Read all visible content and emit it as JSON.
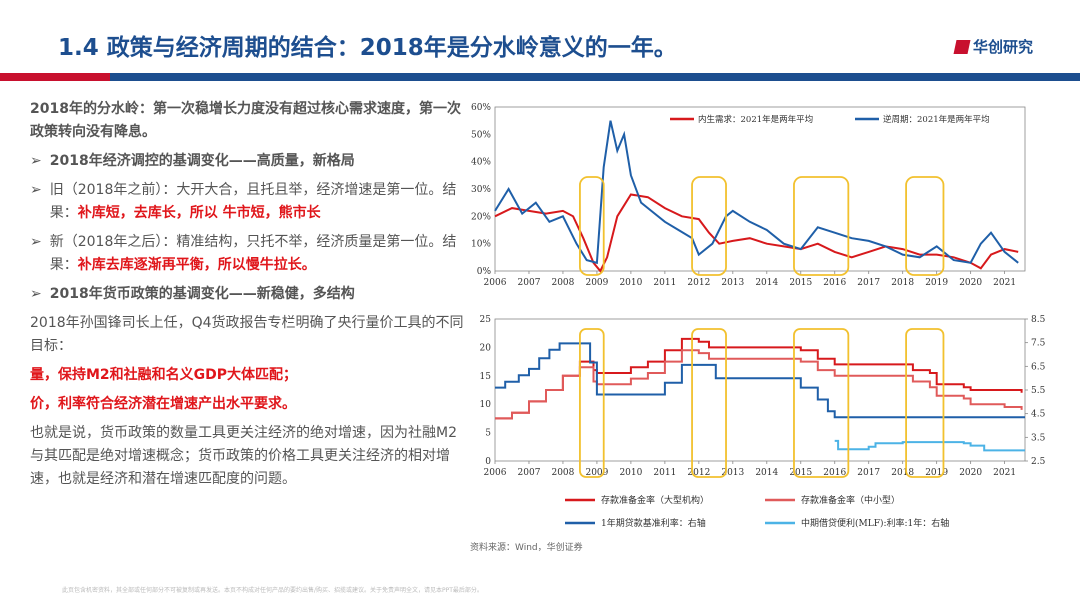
{
  "title": "1.4 政策与经济周期的结合：2018年是分水岭意义的一年。",
  "logo": "华创研究",
  "left": {
    "p1": "2018年的分水岭：第一次稳增长力度没有超过核心需求速度，第一次政策转向没有降息。",
    "b1": "2018年经济调控的基调变化——高质量，新格局",
    "b2_pre": "旧（2018年之前）：大开大合，且托且举，经济增速是第一位。结果：",
    "b2_red": "补库短，去库长，所以 牛市短，熊市长",
    "b3_pre": "新（2018年之后）：精准结构，只托不举，经济质量是第一位。结果：",
    "b3_red": "补库去库逐渐再平衡，所以慢牛拉长。",
    "b4": "2018年货币政策的基调变化——新稳健，多结构",
    "p2": "2018年孙国锋司长上任，Q4货政报告专栏明确了央行量价工具的不同目标：",
    "r1": "量，保持M2和社融和名义GDP大体匹配；",
    "r2": "价，利率符合经济潜在增速产出水平要求。",
    "p3": "也就是说，货币政策的数量工具更关注经济的绝对增速，因为社融M2与其匹配是绝对增速概念；货币政策的价格工具更关注经济的相对增速，也就是经济和潜在增速匹配度的问题。"
  },
  "source": "资料来源：Wind，华创证券",
  "footnote": "此页包含机密资料，其全部或任何部分不可被复制或再发送。本页不构成对任何产品的要约出售/购买、招揽或建议。关于免责声明全文，请见本PPT最后部分。",
  "colors": {
    "red": "#d7191c",
    "blue": "#1f5fa8",
    "lightred": "#e05a5a",
    "lightblue": "#4cb3e6",
    "yellow": "#f2c12e"
  },
  "chart_data": [
    {
      "type": "line",
      "title": "",
      "xlim": [
        2006,
        2021.6
      ],
      "ylim": [
        0,
        60
      ],
      "x_ticks": [
        "2006",
        "2007",
        "2008",
        "2009",
        "2010",
        "2011",
        "2012",
        "2013",
        "2014",
        "2015",
        "2016",
        "2017",
        "2018",
        "2019",
        "2020",
        "2021"
      ],
      "y_ticks": [
        "0%",
        "10%",
        "20%",
        "30%",
        "40%",
        "50%",
        "60%"
      ],
      "series": [
        {
          "name": "内生需求：2021年是两年平均",
          "color": "#d7191c",
          "x": [
            2006,
            2006.5,
            2007,
            2007.5,
            2008,
            2008.3,
            2008.6,
            2008.9,
            2009.1,
            2009.3,
            2009.6,
            2010,
            2010.5,
            2011,
            2011.5,
            2012,
            2012.3,
            2012.6,
            2013,
            2013.5,
            2014,
            2014.5,
            2015,
            2015.5,
            2016,
            2016.5,
            2017,
            2017.5,
            2018,
            2018.5,
            2019,
            2019.5,
            2020,
            2020.3,
            2020.6,
            2021,
            2021.4
          ],
          "values": [
            20,
            23,
            22,
            21,
            22,
            20,
            12,
            3,
            0,
            5,
            20,
            28,
            27,
            23,
            20,
            19,
            14,
            10,
            11,
            12,
            10,
            9,
            8,
            10,
            7,
            5,
            7,
            9,
            8,
            6,
            6,
            5,
            3,
            1,
            6,
            8,
            7
          ]
        },
        {
          "name": "逆周期：2021年是两年平均",
          "color": "#1f5fa8",
          "x": [
            2006,
            2006.4,
            2006.8,
            2007.2,
            2007.6,
            2008,
            2008.4,
            2008.7,
            2009,
            2009.2,
            2009.4,
            2009.6,
            2009.8,
            2010,
            2010.3,
            2010.6,
            2011,
            2011.4,
            2011.8,
            2012,
            2012.4,
            2012.8,
            2013,
            2013.5,
            2014,
            2014.5,
            2015,
            2015.5,
            2016,
            2016.5,
            2017,
            2017.5,
            2018,
            2018.5,
            2019,
            2019.5,
            2020,
            2020.3,
            2020.6,
            2021,
            2021.4
          ],
          "values": [
            22,
            30,
            21,
            25,
            18,
            20,
            10,
            4,
            3,
            38,
            55,
            44,
            50,
            35,
            25,
            22,
            18,
            15,
            12,
            6,
            10,
            20,
            22,
            18,
            15,
            10,
            8,
            16,
            14,
            12,
            11,
            9,
            6,
            5,
            9,
            4,
            3,
            10,
            14,
            7,
            3
          ]
        }
      ]
    },
    {
      "type": "line",
      "title": "",
      "xlim": [
        2006,
        2021.6
      ],
      "ylim": [
        0,
        25
      ],
      "y2lim": [
        2.5,
        8.5
      ],
      "x_ticks": [
        "2006",
        "2007",
        "2008",
        "2009",
        "2010",
        "2011",
        "2012",
        "2013",
        "2014",
        "2015",
        "2016",
        "2017",
        "2018",
        "2019",
        "2020",
        "2021"
      ],
      "y_ticks": [
        "0",
        "5",
        "10",
        "15",
        "20",
        "25"
      ],
      "y2_ticks": [
        "2.5",
        "3.5",
        "4.5",
        "5.5",
        "6.5",
        "7.5",
        "8.5"
      ],
      "series": [
        {
          "name": "存款准备金率（大型机构）",
          "color": "#d7191c",
          "axis": "left",
          "x": [
            2006,
            2006.5,
            2007,
            2007.5,
            2008,
            2008.5,
            2008.9,
            2009,
            2010,
            2010.5,
            2011,
            2011.5,
            2012,
            2012.3,
            2014,
            2015,
            2015.5,
            2016,
            2018,
            2018.3,
            2018.8,
            2019,
            2019.8,
            2020,
            2021,
            2021.5
          ],
          "values": [
            7.5,
            8.5,
            10.5,
            12.5,
            15,
            17.5,
            16,
            15.5,
            16.5,
            17.5,
            19.5,
            21.5,
            21,
            20,
            20,
            19.5,
            18,
            17,
            17,
            16,
            15.5,
            13.5,
            13,
            12.5,
            12.5,
            12
          ]
        },
        {
          "name": "存款准备金率（中小型）",
          "color": "#e05a5a",
          "axis": "left",
          "x": [
            2006,
            2006.5,
            2007,
            2007.5,
            2008,
            2008.5,
            2008.9,
            2009,
            2010,
            2010.5,
            2011,
            2011.5,
            2012,
            2012.3,
            2014,
            2015,
            2015.5,
            2016,
            2018,
            2018.3,
            2018.8,
            2019,
            2019.8,
            2020,
            2021,
            2021.5
          ],
          "values": [
            7.5,
            8.5,
            10.5,
            12.5,
            15,
            16.5,
            14,
            13.5,
            14.5,
            15.5,
            17.5,
            19.5,
            19,
            18,
            18,
            17.5,
            16,
            15,
            15,
            14,
            13,
            11.5,
            11,
            10,
            9.5,
            9
          ]
        },
        {
          "name": "1年期贷款基准利率：右轴",
          "color": "#1f5fa8",
          "axis": "right",
          "x": [
            2006,
            2006.3,
            2006.7,
            2007,
            2007.3,
            2007.6,
            2007.9,
            2008.7,
            2008.8,
            2009,
            2010.8,
            2011,
            2011.5,
            2012.3,
            2012.5,
            2014.8,
            2015,
            2015.5,
            2015.8,
            2016,
            2021.6
          ],
          "values": [
            5.6,
            5.85,
            6.12,
            6.39,
            6.84,
            7.2,
            7.47,
            7.47,
            6.66,
            5.31,
            5.31,
            5.81,
            6.56,
            6.56,
            6.0,
            6.0,
            5.6,
            5.1,
            4.6,
            4.35,
            4.35
          ]
        },
        {
          "name": "中期借贷便利(MLF):利率:1年：右轴",
          "color": "#4cb3e6",
          "axis": "right",
          "x": [
            2016,
            2016.1,
            2016.2,
            2017,
            2017.2,
            2018,
            2019,
            2019.8,
            2020,
            2020.4,
            2021.6
          ],
          "values": [
            3.35,
            3.0,
            3.0,
            3.1,
            3.25,
            3.3,
            3.3,
            3.25,
            3.15,
            2.95,
            2.95
          ]
        }
      ],
      "highlight_periods": [
        [
          2008.5,
          2009.2
        ],
        [
          2011.8,
          2012.8
        ],
        [
          2014.8,
          2016.4
        ],
        [
          2018.1,
          2019.2
        ]
      ]
    }
  ]
}
